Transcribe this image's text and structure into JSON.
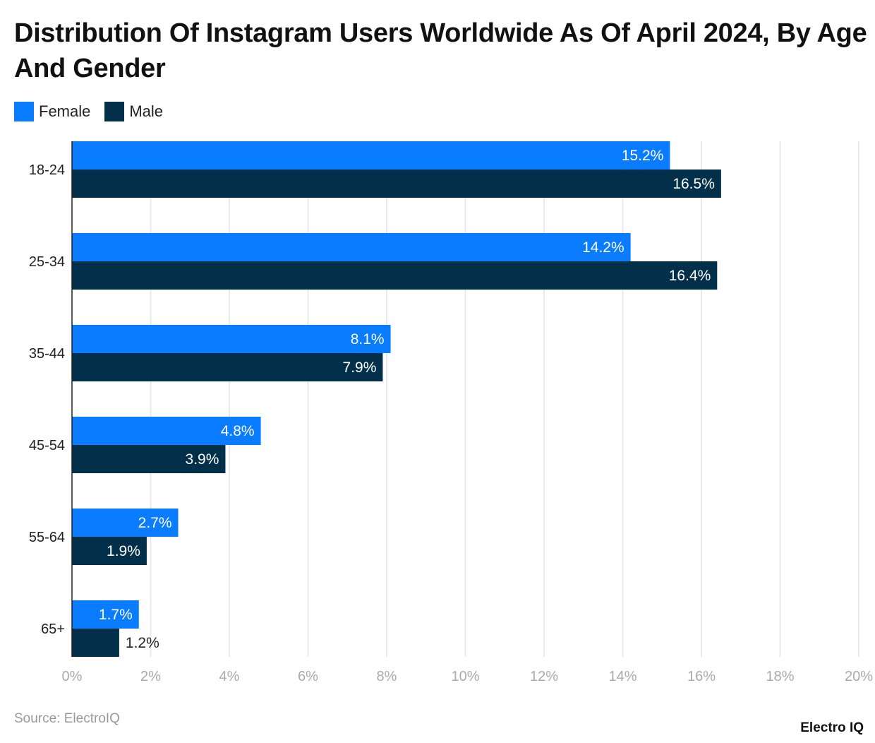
{
  "chart_data": {
    "type": "bar",
    "orientation": "horizontal",
    "title": "Distribution Of Instagram Users Worldwide As Of April 2024, By Age And Gender",
    "categories": [
      "18-24",
      "25-34",
      "35-44",
      "45-54",
      "55-64",
      "65+"
    ],
    "series": [
      {
        "name": "Female",
        "color": "#0a7cff",
        "values": [
          15.2,
          14.2,
          8.1,
          4.8,
          2.7,
          1.7
        ]
      },
      {
        "name": "Male",
        "color": "#02304a",
        "values": [
          16.5,
          16.4,
          7.9,
          3.9,
          1.9,
          1.2
        ]
      }
    ],
    "xlim": [
      0,
      20
    ],
    "xticks": [
      0,
      2,
      4,
      6,
      8,
      10,
      12,
      14,
      16,
      18,
      20
    ],
    "tick_suffix": "%",
    "grid": true,
    "legend": "top-left",
    "source": "Source: ElectroIQ",
    "logo": "Electro IQ"
  }
}
